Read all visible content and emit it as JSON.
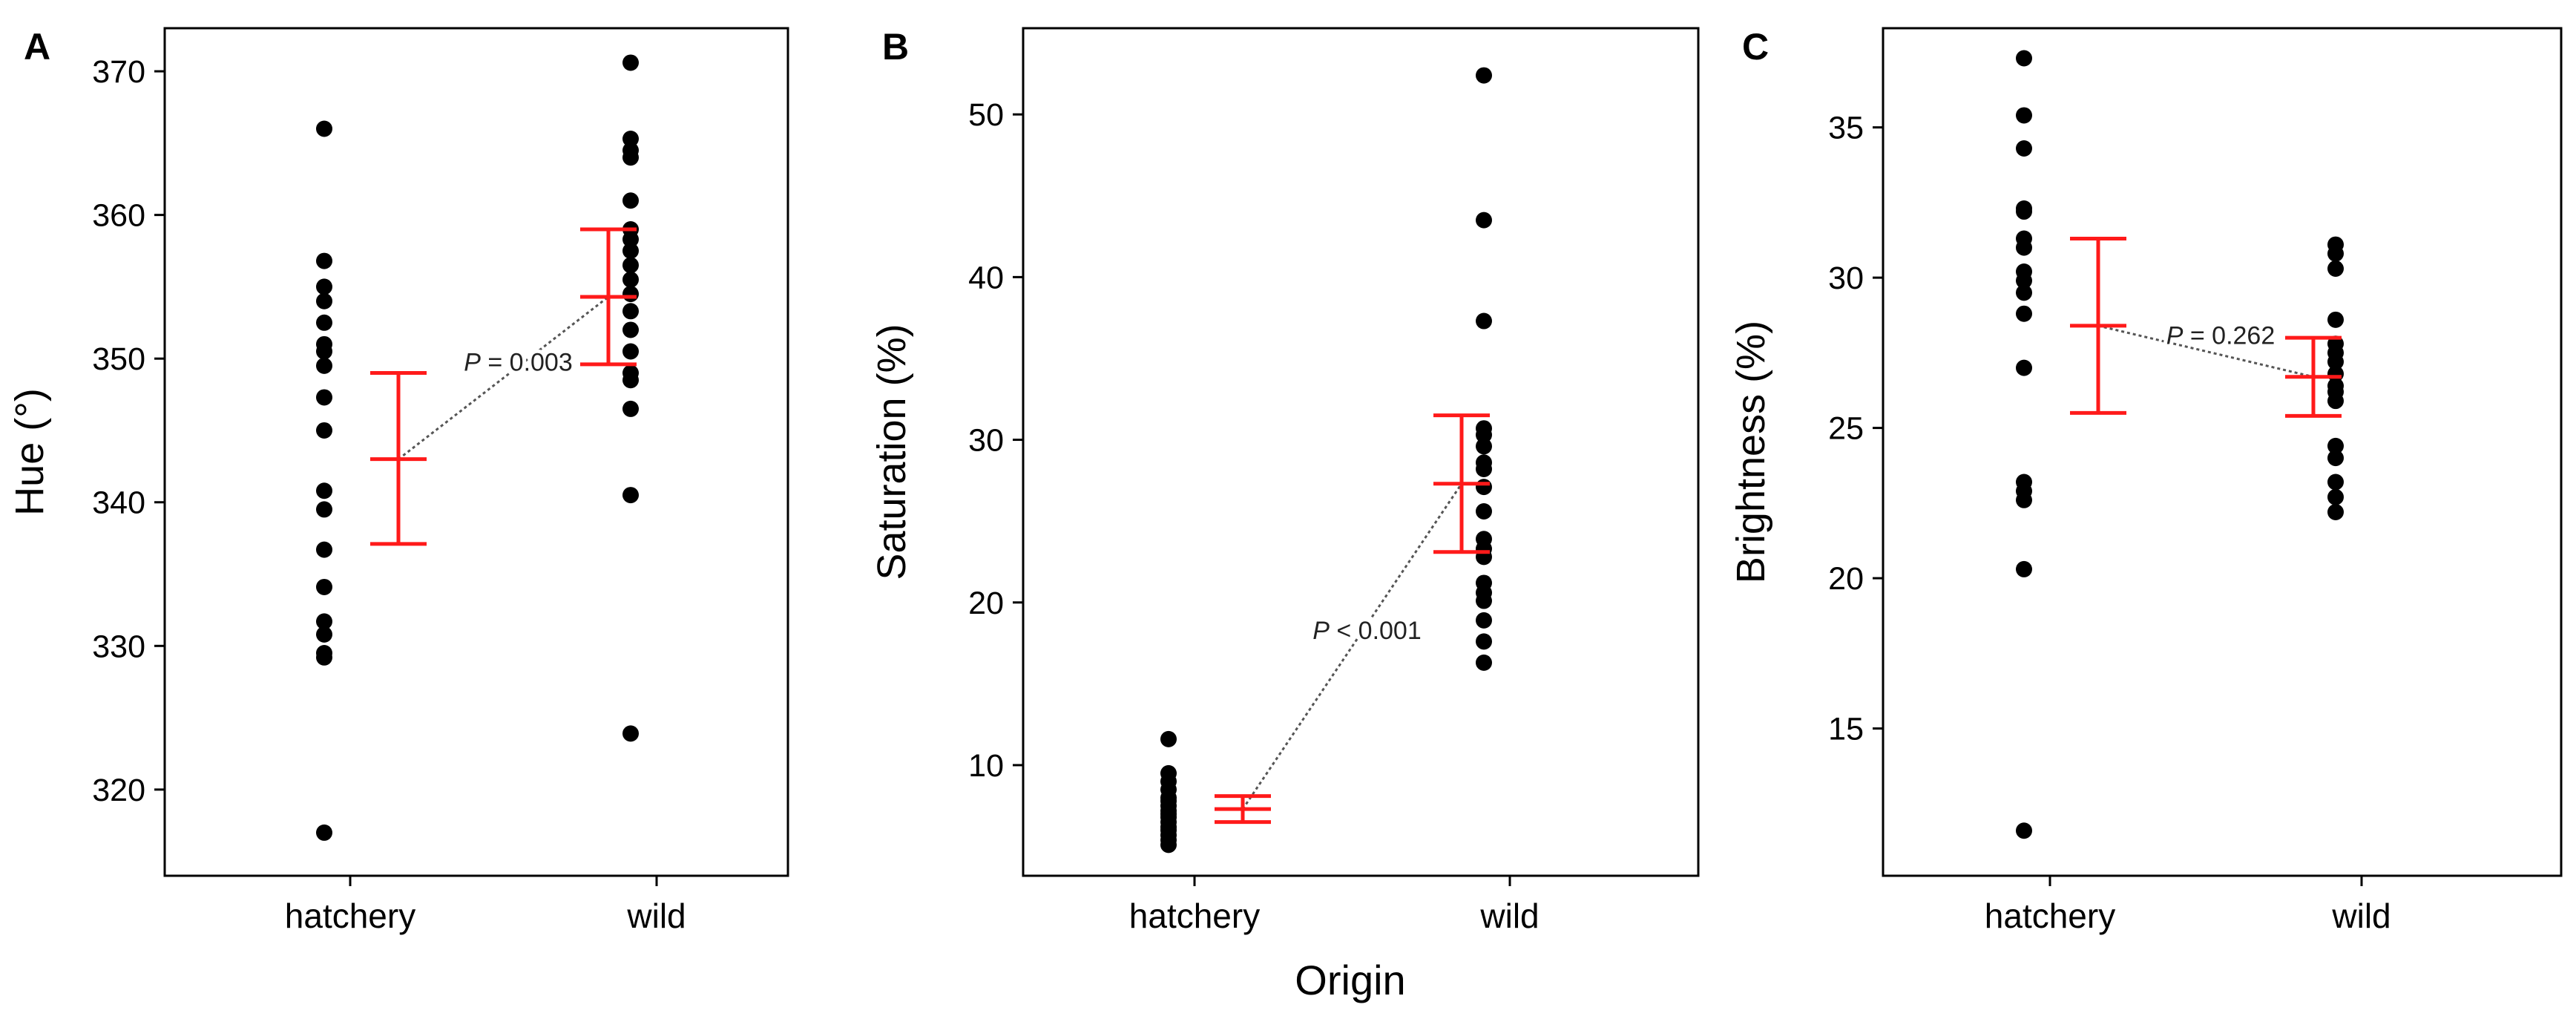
{
  "figure": {
    "shared_xlabel": "Origin"
  },
  "colors": {
    "points": "#000000",
    "mean_ci": "#ff1a1a",
    "connector": "#555555",
    "frame": "#000000"
  },
  "chart_data": [
    {
      "type": "scatter",
      "panel_label": "A",
      "ylabel": "Hue (°)",
      "xlabel": "",
      "categories": [
        "hatchery",
        "wild"
      ],
      "ylim": [
        314,
        373
      ],
      "yticks": [
        320,
        330,
        340,
        350,
        360,
        370
      ],
      "grid": false,
      "series": [
        {
          "category": "hatchery",
          "values": [
            366.0,
            356.8,
            355.0,
            354.0,
            352.5,
            351.0,
            350.5,
            349.5,
            347.3,
            345.0,
            340.8,
            339.5,
            336.7,
            334.1,
            331.7,
            330.8,
            329.5,
            329.2,
            317.0
          ]
        },
        {
          "category": "wild",
          "values": [
            370.6,
            365.3,
            364.5,
            364.0,
            361.0,
            359.0,
            358.3,
            357.5,
            356.5,
            355.5,
            354.5,
            353.3,
            352.0,
            350.5,
            349.0,
            348.5,
            346.5,
            340.5,
            323.9
          ]
        }
      ],
      "summary": [
        {
          "category": "hatchery",
          "mean": 343.0,
          "lower": 337.1,
          "upper": 349.0
        },
        {
          "category": "wild",
          "mean": 354.3,
          "lower": 349.6,
          "upper": 359.0
        }
      ],
      "annotation": {
        "p_label": "P",
        "p_rest": " = 0.003"
      }
    },
    {
      "type": "scatter",
      "panel_label": "B",
      "ylabel": "Saturation (%)",
      "xlabel": "Origin",
      "categories": [
        "hatchery",
        "wild"
      ],
      "ylim": [
        3.2,
        55.3
      ],
      "yticks": [
        10,
        20,
        30,
        40,
        50
      ],
      "grid": false,
      "series": [
        {
          "category": "hatchery",
          "values": [
            11.6,
            9.5,
            9.0,
            8.5,
            8.0,
            7.8,
            7.5,
            7.2,
            7.0,
            6.8,
            6.5,
            6.2,
            6.0,
            5.7,
            5.4,
            5.1
          ]
        },
        {
          "category": "wild",
          "values": [
            52.4,
            43.5,
            37.3,
            30.7,
            30.3,
            29.6,
            28.6,
            28.2,
            27.1,
            25.6,
            23.9,
            23.3,
            22.8,
            21.2,
            20.6,
            20.1,
            18.9,
            17.6,
            16.3
          ]
        }
      ],
      "summary": [
        {
          "category": "hatchery",
          "mean": 7.3,
          "lower": 6.5,
          "upper": 8.1
        },
        {
          "category": "wild",
          "mean": 27.3,
          "lower": 23.1,
          "upper": 31.5
        }
      ],
      "annotation": {
        "p_label": "P",
        "p_rest": " < 0.001"
      }
    },
    {
      "type": "scatter",
      "panel_label": "C",
      "ylabel": "Brightness (%)",
      "xlabel": "",
      "categories": [
        "hatchery",
        "wild"
      ],
      "ylim": [
        10.1,
        38.3
      ],
      "yticks": [
        15,
        20,
        25,
        30,
        35
      ],
      "grid": false,
      "series": [
        {
          "category": "hatchery",
          "values": [
            37.3,
            35.4,
            34.3,
            32.3,
            32.2,
            31.3,
            31.0,
            30.2,
            29.9,
            29.5,
            28.8,
            27.0,
            23.2,
            22.9,
            22.6,
            20.3,
            11.6
          ]
        },
        {
          "category": "wild",
          "values": [
            31.1,
            30.8,
            30.3,
            28.6,
            27.8,
            27.5,
            27.2,
            26.8,
            26.4,
            26.2,
            25.9,
            24.4,
            24.0,
            23.2,
            22.7,
            22.2
          ]
        }
      ],
      "summary": [
        {
          "category": "hatchery",
          "mean": 28.4,
          "lower": 25.5,
          "upper": 31.3
        },
        {
          "category": "wild",
          "mean": 26.7,
          "lower": 25.4,
          "upper": 28.0
        }
      ],
      "annotation": {
        "p_label": "P",
        "p_rest": " = 0.262"
      }
    }
  ]
}
